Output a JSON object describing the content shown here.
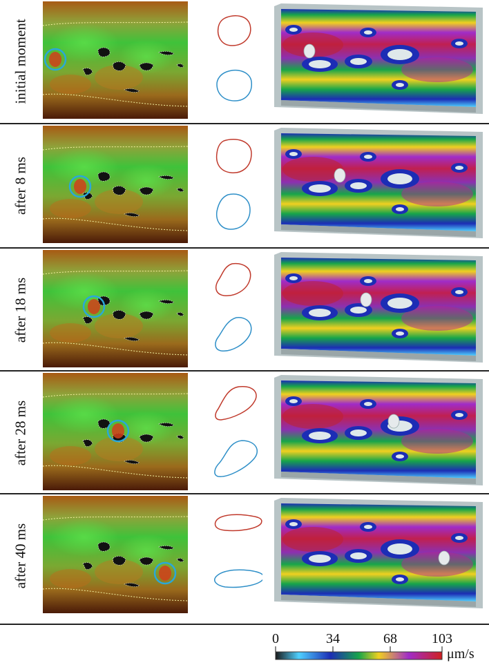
{
  "rows": [
    {
      "label": "initial moment"
    },
    {
      "label": "after 8 ms"
    },
    {
      "label": "after 18 ms"
    },
    {
      "label": "after 28 ms"
    },
    {
      "label": "after 40 ms"
    }
  ],
  "colorbar": {
    "ticks": [
      "0",
      "34",
      "68",
      "103"
    ],
    "unit": "μm/s",
    "range": [
      0,
      103
    ],
    "colors": [
      "#1a1a1a",
      "#4fd0ff",
      "#1c2db5",
      "#17a54a",
      "#f0d020",
      "#a02cc8",
      "#d02020"
    ]
  },
  "colors": {
    "shape_red": "#c0392b",
    "shape_blue": "#2e8fc8",
    "marker_circle": "#2aa8d8"
  }
}
